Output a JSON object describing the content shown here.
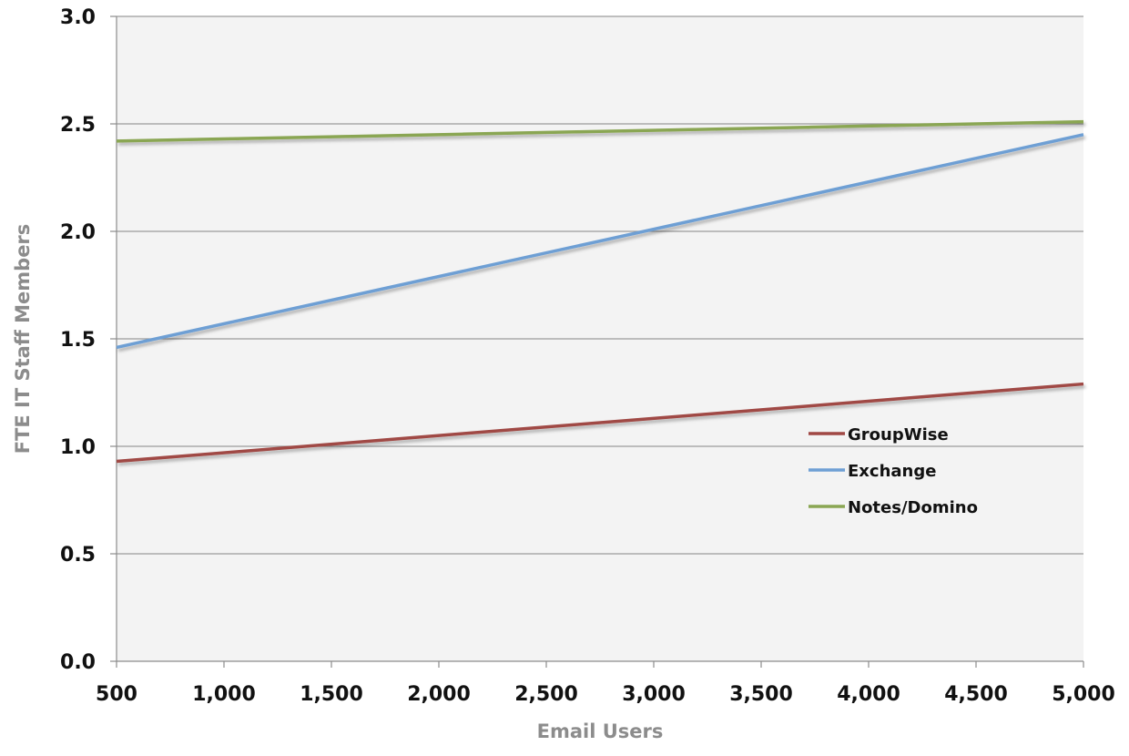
{
  "chart_data": {
    "type": "line",
    "title": "",
    "xlabel": "Email Users",
    "ylabel": "FTE IT Staff Members",
    "xlim": [
      500,
      5000
    ],
    "ylim": [
      0,
      3
    ],
    "x_ticks": [
      500,
      1000,
      1500,
      2000,
      2500,
      3000,
      3500,
      4000,
      4500,
      5000
    ],
    "x_tick_labels": [
      "500",
      "1,000",
      "1,500",
      "2,000",
      "2,500",
      "3,000",
      "3,500",
      "4,000",
      "4,500",
      "5,000"
    ],
    "y_ticks": [
      0,
      0.5,
      1,
      1.5,
      2,
      2.5,
      3
    ],
    "y_tick_labels": [
      "0.0",
      "0.5",
      "1.0",
      "1.5",
      "2.0",
      "2.5",
      "3.0"
    ],
    "grid": "horizontal",
    "legend_position": "inside-right",
    "series": [
      {
        "name": "GroupWise",
        "color": "#a04844",
        "x": [
          500,
          5000
        ],
        "y": [
          0.93,
          1.29
        ]
      },
      {
        "name": "Exchange",
        "color": "#6e9fd4",
        "x": [
          500,
          5000
        ],
        "y": [
          1.46,
          2.45
        ]
      },
      {
        "name": "Notes/Domino",
        "color": "#8aa653",
        "x": [
          500,
          5000
        ],
        "y": [
          2.42,
          2.51
        ]
      }
    ]
  },
  "colors": {
    "plot_background": "#f3f3f3",
    "gridline": "#9a9a9a",
    "axis": "#8c8c8c"
  }
}
